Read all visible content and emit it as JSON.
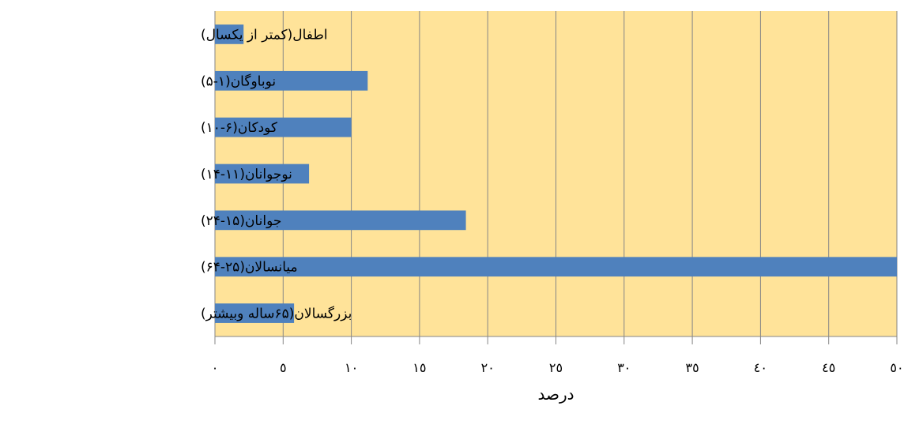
{
  "chart_data": {
    "type": "bar",
    "orientation": "horizontal",
    "categories": [
      "اطفال(کمتر از یکسال)",
      "نوباوگان(۱-۵)",
      "کودکان(۶-۱۰)",
      "نوجوانان(۱۱-۱۴)",
      "جوانان(۱۵-۲۴)",
      "میانسالان(۲۵-۶۴)",
      "بزرگسالان(۶۵ساله وبیشتر)"
    ],
    "values": [
      2.1,
      11.2,
      10.0,
      6.9,
      18.4,
      50.2,
      5.8
    ],
    "tick_labels": [
      "٠",
      "٥",
      "١٠",
      "١٥",
      "٢٠",
      "٢٥",
      "٣٠",
      "٣٥",
      "٤٠",
      "٤٥",
      "٥٠"
    ],
    "xlim": [
      0,
      50
    ],
    "xlabel": "درصد",
    "ylabel": "",
    "title": "",
    "grid": "vertical",
    "legend": "none",
    "colors": {
      "plot_background": "#FFE399",
      "bar": "#4F81BD",
      "grid": "#868686",
      "axis": "#868686"
    }
  }
}
